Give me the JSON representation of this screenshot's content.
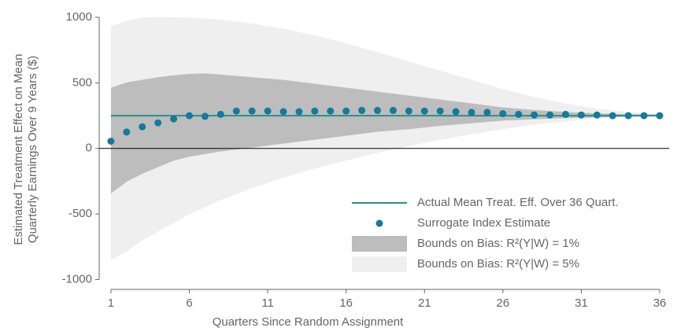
{
  "chart_data": {
    "type": "line",
    "xlabel": "Quarters Since Random Assignment",
    "ylabel": [
      "Estimated Treatment Effect on Mean",
      "Quarterly Earnings Over 9 Years ($)"
    ],
    "xlim": [
      0.25,
      36.6
    ],
    "ylim": [
      -1075,
      1060
    ],
    "xticks": [
      1,
      6,
      11,
      16,
      21,
      26,
      31,
      36
    ],
    "yticks": [
      -1000,
      -500,
      0,
      500,
      1000
    ],
    "legend": "lower right",
    "bands": [
      {
        "name": "Bounds on Bias: R²(Y|W) = 5%",
        "color": "#efefef",
        "x": [
          1,
          2,
          3,
          4,
          6,
          8,
          10,
          12,
          14,
          16,
          18,
          20,
          22,
          24,
          26,
          28,
          30,
          32,
          34,
          36
        ],
        "upper": [
          930,
          970,
          995,
          1000,
          995,
          980,
          950,
          910,
          860,
          800,
          730,
          660,
          590,
          520,
          450,
          390,
          340,
          300,
          275,
          260
        ],
        "lower": [
          -850,
          -780,
          -700,
          -630,
          -500,
          -390,
          -300,
          -220,
          -150,
          -90,
          -30,
          20,
          70,
          110,
          150,
          185,
          210,
          230,
          242,
          248
        ]
      },
      {
        "name": "Bounds on Bias: R²(Y|W) = 1%",
        "color": "#bdbdbd",
        "x": [
          1,
          2,
          3,
          4,
          5,
          6,
          7,
          8,
          10,
          12,
          14,
          16,
          18,
          20,
          22,
          24,
          26,
          28,
          30,
          32,
          34,
          36
        ],
        "upper": [
          460,
          500,
          520,
          540,
          555,
          565,
          570,
          560,
          540,
          520,
          490,
          460,
          430,
          400,
          370,
          340,
          310,
          290,
          275,
          265,
          258,
          255
        ],
        "lower": [
          -340,
          -250,
          -190,
          -140,
          -90,
          -60,
          -40,
          -20,
          10,
          40,
          70,
          100,
          130,
          150,
          175,
          195,
          215,
          225,
          235,
          240,
          245,
          248
        ]
      }
    ],
    "series": [
      {
        "name": "Actual Mean Treat. Eff. Over 36 Quart.",
        "color": "#2a8f8a",
        "style": "line",
        "x": [
          1,
          36
        ],
        "values": [
          250,
          250
        ]
      },
      {
        "name": "Surrogate Index Estimate",
        "color": "#17799b",
        "style": "points",
        "x": [
          1,
          2,
          3,
          4,
          5,
          6,
          7,
          8,
          9,
          10,
          11,
          12,
          13,
          14,
          15,
          16,
          17,
          18,
          19,
          20,
          21,
          22,
          23,
          24,
          25,
          26,
          27,
          28,
          29,
          30,
          31,
          32,
          33,
          34,
          35,
          36
        ],
        "values": [
          55,
          125,
          165,
          195,
          225,
          250,
          245,
          260,
          285,
          285,
          285,
          280,
          280,
          285,
          285,
          285,
          290,
          290,
          290,
          285,
          285,
          285,
          280,
          275,
          275,
          265,
          260,
          255,
          255,
          260,
          255,
          255,
          250,
          250,
          250,
          250
        ]
      }
    ]
  }
}
